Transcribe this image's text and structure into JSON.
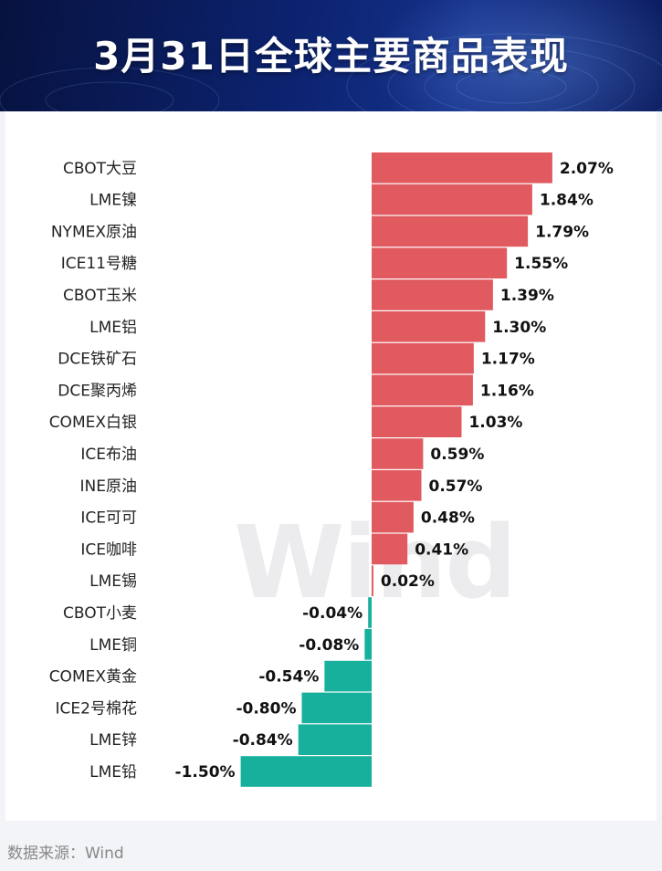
{
  "header": {
    "title": "3月31日全球主要商品表现"
  },
  "footer": {
    "source": "数据来源：Wind"
  },
  "watermark": "Wind",
  "chart_data": {
    "type": "bar",
    "orientation": "horizontal",
    "title": "3月31日全球主要商品表现",
    "categories": [
      "CBOT大豆",
      "LME镍",
      "NYMEX原油",
      "ICE11号糖",
      "CBOT玉米",
      "LME铝",
      "DCE铁矿石",
      "DCE聚丙烯",
      "COMEX白银",
      "ICE布油",
      "INE原油",
      "ICE可可",
      "ICE咖啡",
      "LME锡",
      "CBOT小麦",
      "LME铜",
      "COMEX黄金",
      "ICE2号棉花",
      "LME锌",
      "LME铅"
    ],
    "values": [
      2.07,
      1.84,
      1.79,
      1.55,
      1.39,
      1.3,
      1.17,
      1.16,
      1.03,
      0.59,
      0.57,
      0.48,
      0.41,
      0.02,
      -0.04,
      -0.08,
      -0.54,
      -0.8,
      -0.84,
      -1.5
    ],
    "labels": [
      "2.07%",
      "1.84%",
      "1.79%",
      "1.55%",
      "1.39%",
      "1.30%",
      "1.17%",
      "1.16%",
      "1.03%",
      "0.59%",
      "0.57%",
      "0.48%",
      "0.41%",
      "0.02%",
      "-0.04%",
      "-0.08%",
      "-0.54%",
      "-0.80%",
      "-0.84%",
      "-1.50%"
    ],
    "unit": "%",
    "colors": {
      "positive": "#e05a60",
      "negative": "#17b09c"
    },
    "grid": false,
    "legend": "none"
  }
}
